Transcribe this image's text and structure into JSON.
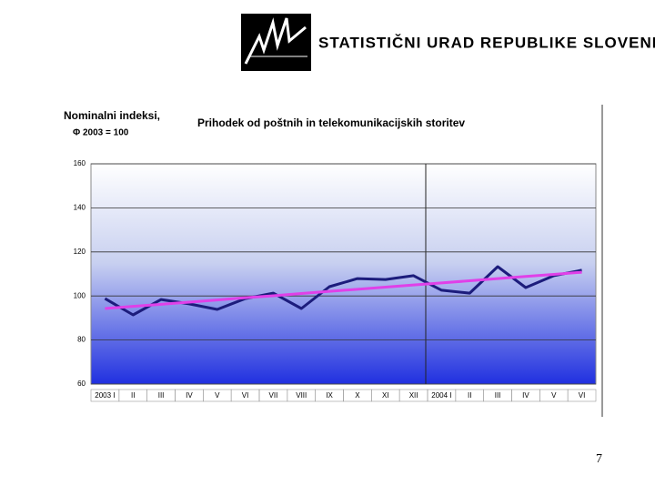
{
  "header": {
    "organization": "STATISTIČNI URAD REPUBLIKE SLOVENIJE"
  },
  "chart_data": {
    "type": "line",
    "title": "Prihodek od poštnih in telekomunikacijskih storitev",
    "y_label": "Nominalni indeksi,",
    "y_sublabel": "Φ 2003 = 100",
    "categories": [
      "2003 I",
      "II",
      "III",
      "IV",
      "V",
      "VI",
      "VII",
      "VIII",
      "IX",
      "X",
      "XI",
      "XII",
      "2004 I",
      "II",
      "III",
      "IV",
      "V",
      "VI"
    ],
    "series": [
      {
        "color": "#1c1c7c",
        "values": [
          98.8,
          91.4,
          98.4,
          96.4,
          93.9,
          98.8,
          101.3,
          94.3,
          104.2,
          107.9,
          107.5,
          109.2,
          102.6,
          101.3,
          113.3,
          103.8,
          109.2,
          111.7
        ]
      },
      {
        "color": "#e040e8",
        "values": [
          94.3,
          95.3,
          96.2,
          97.2,
          98.2,
          99.2,
          100.1,
          101.1,
          102.1,
          103.0,
          104.0,
          105.0,
          105.9,
          106.9,
          107.9,
          108.9,
          109.8,
          110.8
        ]
      }
    ],
    "ylim": [
      60,
      160
    ],
    "yticks": [
      60,
      80,
      100,
      120,
      140,
      160
    ],
    "grid": true
  },
  "page_number": "7"
}
